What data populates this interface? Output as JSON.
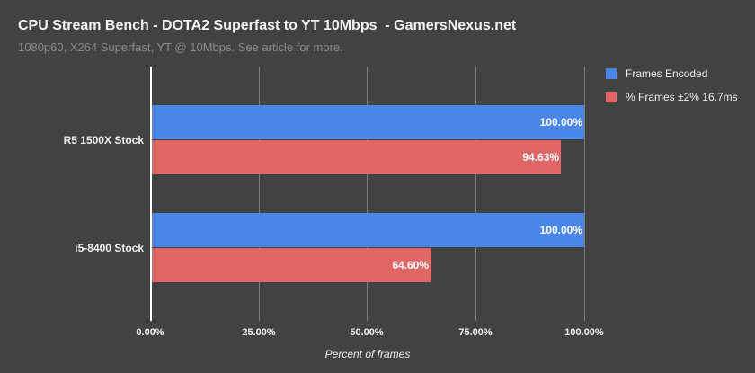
{
  "header": {
    "title": "CPU Stream Bench - DOTA2 Superfast to YT 10Mbps  - GamersNexus.net",
    "subtitle": "1080p60, X264 Superfast, YT @ 10Mbps. See article for more."
  },
  "colors": {
    "background": "#424242",
    "frames_encoded": "#4a86e8",
    "frames_within": "#e06666"
  },
  "chart_data": {
    "type": "bar",
    "orientation": "horizontal",
    "title": "CPU Stream Bench - DOTA2 Superfast to YT 10Mbps  - GamersNexus.net",
    "subtitle": "1080p60, X264 Superfast, YT @ 10Mbps. See article for more.",
    "categories": [
      "R5 1500X Stock",
      "i5-8400 Stock"
    ],
    "series": [
      {
        "name": "Frames Encoded",
        "color": "#4a86e8",
        "values": [
          100.0,
          100.0
        ],
        "labels": [
          "100.00%",
          "100.00%"
        ]
      },
      {
        "name": "% Frames ±2% 16.7ms",
        "color": "#e06666",
        "values": [
          94.63,
          64.6
        ],
        "labels": [
          "94.63%",
          "64.60%"
        ]
      }
    ],
    "xlabel": "Percent of frames",
    "ylabel": "",
    "xlim": [
      0,
      100
    ],
    "xticks": [
      "0.00%",
      "25.00%",
      "50.00%",
      "75.00%",
      "100.00%"
    ],
    "grid": true,
    "legend_position": "right"
  }
}
